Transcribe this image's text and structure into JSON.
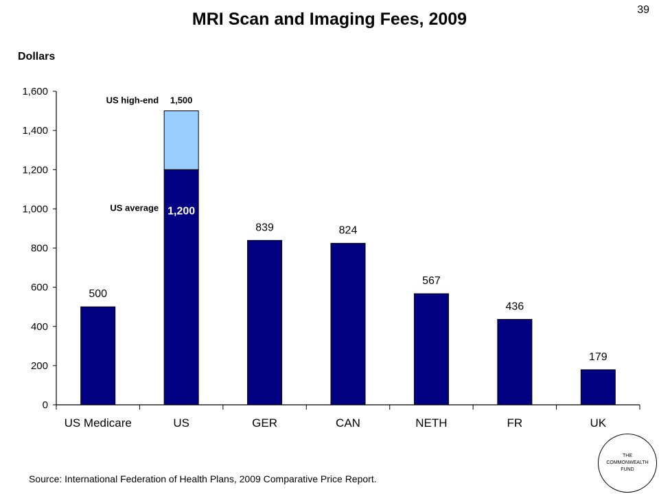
{
  "slide": {
    "title": "MRI Scan and Imaging Fees, 2009",
    "number": "39"
  },
  "ylabel": "Dollars",
  "source": "Source: International Federation of Health Plans, 2009 Comparative Price Report.",
  "logo": {
    "line1": "THE",
    "line2": "COMMONWEALTH",
    "line3": "FUND"
  },
  "colors": {
    "bar": "#000080",
    "highlight": "#99CCFF",
    "axis": "#000000"
  },
  "chart_data": {
    "type": "bar",
    "stacked": true,
    "title": "MRI Scan and Imaging Fees, 2009",
    "xlabel": "",
    "ylabel": "Dollars",
    "ylim": [
      0,
      1600
    ],
    "ytick_step": 200,
    "ytick_labels": [
      "0",
      "200",
      "400",
      "600",
      "800",
      "1,000",
      "1,200",
      "1,400",
      "1,600"
    ],
    "grid": false,
    "categories": [
      "US Medicare",
      "US",
      "GER",
      "CAN",
      "NETH",
      "FR",
      "UK"
    ],
    "values": [
      500,
      1200,
      839,
      824,
      567,
      436,
      179
    ],
    "value_labels": [
      "500",
      "1,200",
      "839",
      "824",
      "567",
      "436",
      "179"
    ],
    "extension": {
      "category_index": 1,
      "top": 1500,
      "label": "1,500"
    },
    "annotations": [
      {
        "text": "US high-end",
        "target": "extension top"
      },
      {
        "text": "US average",
        "target": "US bar value"
      }
    ]
  }
}
